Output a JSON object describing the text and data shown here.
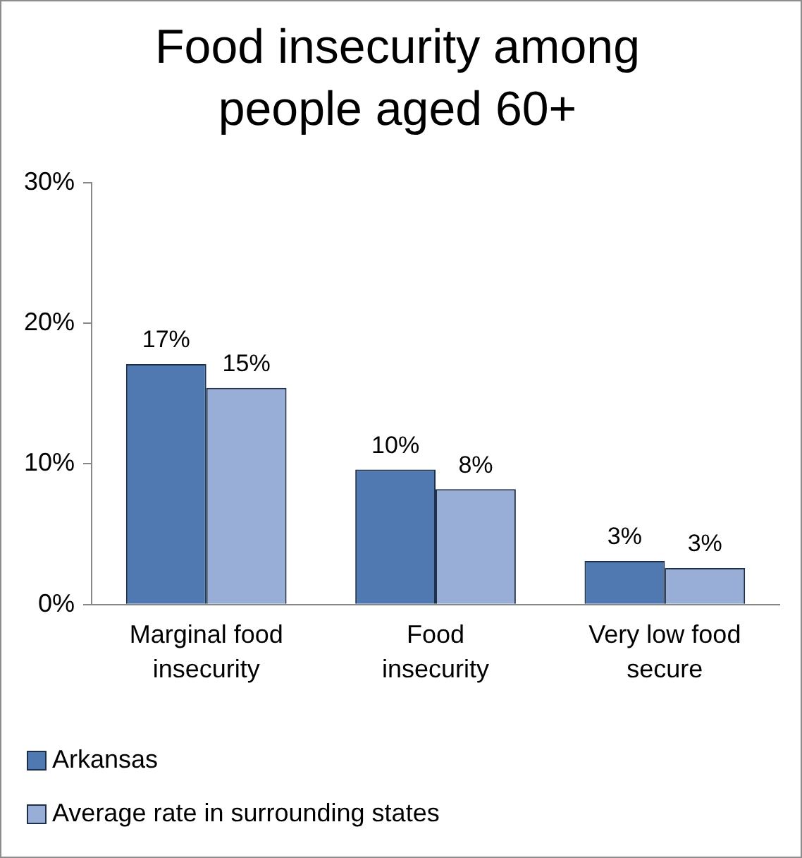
{
  "chart_data": {
    "type": "bar",
    "title": "Food insecurity among people aged 60+",
    "categories": [
      "Marginal food insecurity",
      "Food insecurity",
      "Very low food secure"
    ],
    "series": [
      {
        "name": "Arkansas",
        "color": "#4f79b0",
        "values": [
          17.1,
          9.6,
          3.1
        ],
        "value_labels": [
          "17%",
          "10%",
          "3%"
        ]
      },
      {
        "name": "Average rate in surrounding states",
        "color": "#98aed6",
        "values": [
          15.4,
          8.2,
          2.6
        ],
        "value_labels": [
          "15%",
          "8%",
          "3%"
        ]
      }
    ],
    "ylim": [
      0,
      30
    ],
    "yticks": [
      {
        "value": 0,
        "label": "0%"
      },
      {
        "value": 10,
        "label": "10%"
      },
      {
        "value": 20,
        "label": "20%"
      },
      {
        "value": 30,
        "label": "30%"
      }
    ],
    "grid": false,
    "legend": "bottom"
  }
}
